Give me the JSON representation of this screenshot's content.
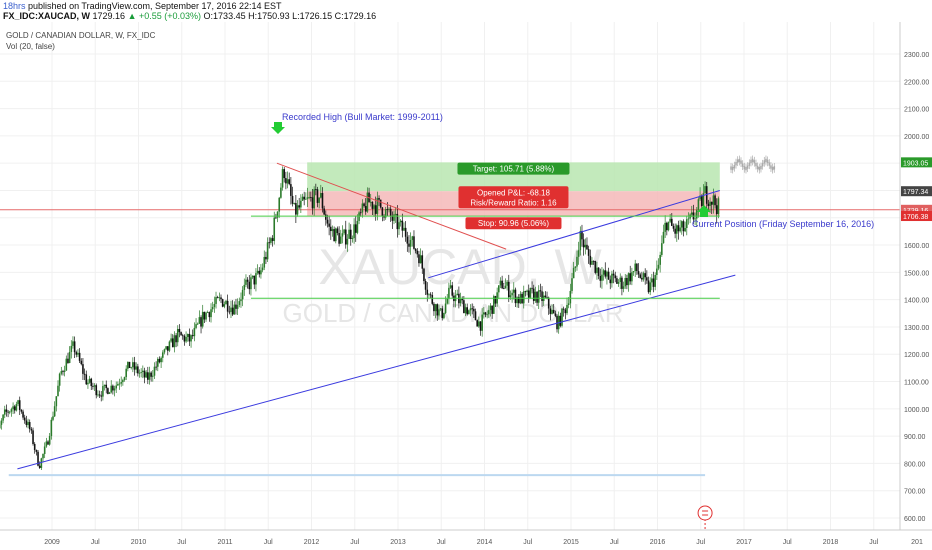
{
  "header": {
    "publish_age": "18hrs",
    "publish_text": "published on TradingView.com, September 17, 2016 22:14 EST",
    "symbol": "FX_IDC:XAUCAD, W",
    "last": "1729.16",
    "change": "▲ +0.55 (+0.03%)",
    "ohlc": "O:1733.45 H:1750.93 L:1726.15 C:1729.16"
  },
  "chart": {
    "title": "GOLD / CANADIAN DOLLAR, W, FX_IDC",
    "indicator": "Vol (20, false)",
    "watermark_symbol": "XAUCAD, W",
    "watermark_name": "GOLD / CANADIAN DOLLAR",
    "annotation_high": "Recorded High (Bull Market: 1999-2011)",
    "annotation_current": "Current Position (Friday September 16, 2016)",
    "target_label": "Target: 105.71 (5.88%)",
    "pnl_label": "Opened P&L: -68.18",
    "rr_label": "Risk/Reward Ratio: 1.16",
    "stop_label": "Stop: 90.96 (5.06%)",
    "badge_target": "1903.05",
    "badge_entry": "1797.34",
    "badge_last": "1729.16",
    "badge_stop": "1706.38",
    "event_icon": "dividend-marker-icon"
  },
  "colors": {
    "up": "#2a7a2a",
    "down": "#111111",
    "target_zone": "#b9e6b0",
    "stop_zone": "#f5b9b9",
    "trendline_blue": "#3a3adf",
    "trendline_red": "#e05050",
    "support_green": "#44cc44",
    "last_price": "#e66a6a"
  },
  "chart_data": {
    "type": "candlestick",
    "title": "GOLD / CANADIAN DOLLAR, W, FX_IDC",
    "ylim": [
      550,
      2400
    ],
    "y_ticks": [
      600,
      700,
      800,
      900,
      1000,
      1100,
      1200,
      1300,
      1400,
      1500,
      1600,
      1700,
      1800,
      1900,
      2000,
      2100,
      2200,
      2300
    ],
    "x_ticks": [
      "2009",
      "Jul",
      "2010",
      "Jul",
      "2011",
      "Jul",
      "2012",
      "Jul",
      "2013",
      "Jul",
      "2014",
      "Jul",
      "2015",
      "Jul",
      "2016",
      "Jul",
      "2017",
      "Jul",
      "2018",
      "Jul",
      "201"
    ],
    "x_tick_years": [
      2009,
      2009.5,
      2010,
      2010.5,
      2011,
      2011.5,
      2012,
      2012.5,
      2013,
      2013.5,
      2014,
      2014.5,
      2015,
      2015.5,
      2016,
      2016.5,
      2017,
      2017.5,
      2018,
      2018.5,
      2019
    ],
    "price_anchors": [
      [
        2008.3,
        850
      ],
      [
        2008.45,
        980
      ],
      [
        2008.6,
        1020
      ],
      [
        2008.75,
        920
      ],
      [
        2008.85,
        790
      ],
      [
        2008.95,
        880
      ],
      [
        2009.1,
        1130
      ],
      [
        2009.25,
        1230
      ],
      [
        2009.4,
        1100
      ],
      [
        2009.55,
        1060
      ],
      [
        2009.75,
        1090
      ],
      [
        2009.9,
        1160
      ],
      [
        2010.1,
        1110
      ],
      [
        2010.3,
        1200
      ],
      [
        2010.45,
        1270
      ],
      [
        2010.6,
        1250
      ],
      [
        2010.75,
        1340
      ],
      [
        2010.95,
        1400
      ],
      [
        2011.1,
        1370
      ],
      [
        2011.25,
        1450
      ],
      [
        2011.4,
        1490
      ],
      [
        2011.55,
        1640
      ],
      [
        2011.68,
        1880
      ],
      [
        2011.8,
        1720
      ],
      [
        2011.95,
        1760
      ],
      [
        2012.1,
        1780
      ],
      [
        2012.2,
        1660
      ],
      [
        2012.35,
        1620
      ],
      [
        2012.5,
        1660
      ],
      [
        2012.65,
        1760
      ],
      [
        2012.8,
        1740
      ],
      [
        2012.95,
        1690
      ],
      [
        2013.1,
        1640
      ],
      [
        2013.25,
        1560
      ],
      [
        2013.35,
        1420
      ],
      [
        2013.5,
        1340
      ],
      [
        2013.6,
        1430
      ],
      [
        2013.72,
        1390
      ],
      [
        2013.85,
        1350
      ],
      [
        2013.95,
        1310
      ],
      [
        2014.1,
        1380
      ],
      [
        2014.2,
        1460
      ],
      [
        2014.4,
        1400
      ],
      [
        2014.55,
        1420
      ],
      [
        2014.7,
        1400
      ],
      [
        2014.85,
        1310
      ],
      [
        2014.95,
        1380
      ],
      [
        2015.05,
        1520
      ],
      [
        2015.1,
        1640
      ],
      [
        2015.2,
        1560
      ],
      [
        2015.35,
        1490
      ],
      [
        2015.5,
        1470
      ],
      [
        2015.6,
        1460
      ],
      [
        2015.75,
        1510
      ],
      [
        2015.9,
        1440
      ],
      [
        2016.0,
        1500
      ],
      [
        2016.1,
        1690
      ],
      [
        2016.2,
        1650
      ],
      [
        2016.32,
        1660
      ],
      [
        2016.45,
        1720
      ],
      [
        2016.55,
        1790
      ],
      [
        2016.65,
        1760
      ],
      [
        2016.72,
        1730
      ]
    ],
    "target_zone": {
      "x0": 2011.95,
      "x1": 2016.72,
      "y0": 1797.34,
      "y1": 1903.05
    },
    "stop_zone": {
      "x0": 2011.95,
      "x1": 2016.72,
      "y0": 1706.38,
      "y1": 1797.34
    },
    "last_price": 1729.16,
    "trendlines": [
      {
        "name": "lower-support",
        "color": "blue",
        "points": [
          [
            2008.6,
            780
          ],
          [
            2016.9,
            1490
          ]
        ]
      },
      {
        "name": "upper-channel",
        "color": "blue",
        "points": [
          [
            2013.35,
            1480
          ],
          [
            2016.72,
            1800
          ]
        ]
      },
      {
        "name": "downtrend",
        "color": "red",
        "points": [
          [
            2011.6,
            1900
          ],
          [
            2014.25,
            1585
          ]
        ]
      },
      {
        "name": "support-1400",
        "color": "green",
        "points": [
          [
            2011.3,
            1405
          ],
          [
            2016.72,
            1405
          ]
        ]
      },
      {
        "name": "resistance-1700",
        "color": "green",
        "points": [
          [
            2011.3,
            1706
          ],
          [
            2016.72,
            1706
          ]
        ]
      },
      {
        "name": "faint-760",
        "color": "lightblue",
        "points": [
          [
            2008.5,
            757
          ],
          [
            2016.55,
            757
          ]
        ]
      }
    ]
  }
}
